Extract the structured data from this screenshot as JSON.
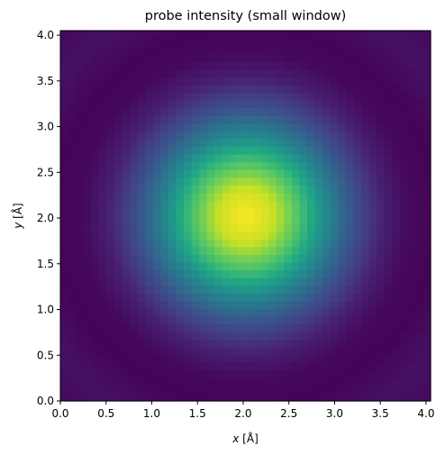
{
  "chart_data": {
    "type": "heatmap",
    "title": "probe intensity (small window)",
    "xlabel_var": "x",
    "xlabel_unit": "[Å]",
    "ylabel_var": "y",
    "ylabel_unit": "[Å]",
    "xlim": [
      0.0,
      4.05
    ],
    "ylim": [
      0.0,
      4.05
    ],
    "xticks": [
      "0.0",
      "0.5",
      "1.0",
      "1.5",
      "2.0",
      "2.5",
      "3.0",
      "3.5",
      "4.0"
    ],
    "yticks": [
      "0.0",
      "0.5",
      "1.0",
      "1.5",
      "2.0",
      "2.5",
      "3.0",
      "3.5",
      "4.0"
    ],
    "grid": false,
    "colormap": "viridis",
    "grid_points": 48,
    "probe_center": [
      2.03,
      2.03
    ],
    "intensity_profile": [
      {
        "r": 0.0,
        "value": 1.0
      },
      {
        "r": 0.3,
        "value": 0.92
      },
      {
        "r": 0.6,
        "value": 0.7
      },
      {
        "r": 0.9,
        "value": 0.45
      },
      {
        "r": 1.2,
        "value": 0.24
      },
      {
        "r": 1.5,
        "value": 0.09
      },
      {
        "r": 1.8,
        "value": 0.02
      },
      {
        "r": 2.1,
        "value": 0.01
      },
      {
        "r": 2.5,
        "value": 0.045
      },
      {
        "r": 2.9,
        "value": 0.02
      }
    ]
  }
}
